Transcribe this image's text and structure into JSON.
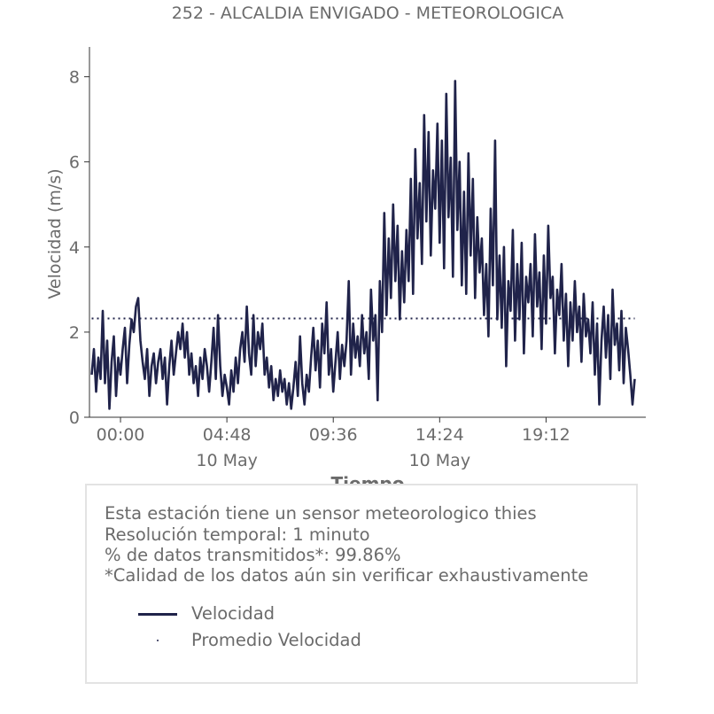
{
  "chart_data": {
    "type": "line",
    "title": "252 - ALCALDIA ENVIGADO - METEOROLOGICA",
    "xlabel": "Tiempo",
    "ylabel": "Velocidad (m/s)",
    "ylim": [
      0,
      8.7
    ],
    "xlim": [
      -1.4,
      23.7
    ],
    "yticks": [
      0,
      2,
      4,
      6,
      8
    ],
    "xticks": [
      {
        "h": 0.0,
        "label": "00:00",
        "sublabel": ""
      },
      {
        "h": 4.8,
        "label": "04:48",
        "sublabel": "10 May"
      },
      {
        "h": 9.6,
        "label": "09:36",
        "sublabel": ""
      },
      {
        "h": 14.4,
        "label": "14:24",
        "sublabel": "10 May"
      },
      {
        "h": 19.2,
        "label": "19:12",
        "sublabel": ""
      }
    ],
    "x_unit": "hours after 00:00 on 10 May",
    "grid": false,
    "series": [
      {
        "name": "Velocidad",
        "style": "line",
        "color": "#20234a",
        "points": [
          [
            -1.3,
            1.0
          ],
          [
            -1.2,
            1.6
          ],
          [
            -1.1,
            0.6
          ],
          [
            -1.0,
            1.4
          ],
          [
            -0.9,
            0.9
          ],
          [
            -0.8,
            2.5
          ],
          [
            -0.7,
            0.8
          ],
          [
            -0.6,
            1.8
          ],
          [
            -0.5,
            0.2
          ],
          [
            -0.4,
            1.3
          ],
          [
            -0.3,
            1.9
          ],
          [
            -0.2,
            0.5
          ],
          [
            -0.1,
            1.4
          ],
          [
            0.0,
            1.0
          ],
          [
            0.1,
            1.6
          ],
          [
            0.2,
            2.1
          ],
          [
            0.3,
            0.8
          ],
          [
            0.4,
            1.7
          ],
          [
            0.5,
            2.3
          ],
          [
            0.6,
            2.0
          ],
          [
            0.7,
            2.6
          ],
          [
            0.8,
            2.8
          ],
          [
            0.9,
            1.8
          ],
          [
            1.0,
            1.3
          ],
          [
            1.1,
            0.9
          ],
          [
            1.2,
            1.6
          ],
          [
            1.3,
            0.5
          ],
          [
            1.4,
            1.2
          ],
          [
            1.5,
            1.5
          ],
          [
            1.6,
            0.8
          ],
          [
            1.7,
            1.3
          ],
          [
            1.8,
            1.6
          ],
          [
            1.9,
            0.9
          ],
          [
            2.0,
            1.4
          ],
          [
            2.1,
            0.3
          ],
          [
            2.2,
            1.2
          ],
          [
            2.3,
            1.8
          ],
          [
            2.4,
            1.0
          ],
          [
            2.5,
            1.5
          ],
          [
            2.6,
            2.0
          ],
          [
            2.7,
            1.6
          ],
          [
            2.8,
            2.2
          ],
          [
            2.9,
            1.4
          ],
          [
            3.0,
            2.0
          ],
          [
            3.1,
            1.0
          ],
          [
            3.2,
            1.5
          ],
          [
            3.3,
            0.8
          ],
          [
            3.4,
            1.2
          ],
          [
            3.5,
            0.5
          ],
          [
            3.6,
            1.4
          ],
          [
            3.7,
            0.9
          ],
          [
            3.8,
            1.6
          ],
          [
            3.9,
            1.2
          ],
          [
            4.0,
            0.6
          ],
          [
            4.1,
            1.3
          ],
          [
            4.2,
            2.1
          ],
          [
            4.3,
            0.9
          ],
          [
            4.4,
            2.4
          ],
          [
            4.5,
            1.2
          ],
          [
            4.6,
            0.5
          ],
          [
            4.7,
            1.0
          ],
          [
            4.8,
            0.7
          ],
          [
            4.9,
            0.3
          ],
          [
            5.0,
            1.1
          ],
          [
            5.1,
            0.6
          ],
          [
            5.2,
            1.4
          ],
          [
            5.3,
            0.8
          ],
          [
            5.4,
            1.6
          ],
          [
            5.5,
            2.0
          ],
          [
            5.6,
            1.3
          ],
          [
            5.7,
            2.6
          ],
          [
            5.8,
            1.5
          ],
          [
            5.9,
            1.0
          ],
          [
            6.0,
            2.4
          ],
          [
            6.1,
            1.2
          ],
          [
            6.2,
            2.0
          ],
          [
            6.3,
            1.6
          ],
          [
            6.4,
            2.2
          ],
          [
            6.5,
            1.0
          ],
          [
            6.6,
            1.4
          ],
          [
            6.7,
            0.7
          ],
          [
            6.8,
            1.2
          ],
          [
            6.9,
            0.4
          ],
          [
            7.0,
            0.9
          ],
          [
            7.1,
            0.5
          ],
          [
            7.2,
            1.1
          ],
          [
            7.3,
            0.6
          ],
          [
            7.4,
            0.9
          ],
          [
            7.5,
            0.3
          ],
          [
            7.6,
            0.8
          ],
          [
            7.7,
            0.2
          ],
          [
            7.8,
            0.7
          ],
          [
            7.9,
            1.3
          ],
          [
            8.0,
            0.5
          ],
          [
            8.1,
            1.9
          ],
          [
            8.2,
            0.8
          ],
          [
            8.3,
            0.3
          ],
          [
            8.4,
            1.0
          ],
          [
            8.5,
            0.6
          ],
          [
            8.6,
            1.4
          ],
          [
            8.7,
            2.1
          ],
          [
            8.8,
            1.1
          ],
          [
            8.9,
            1.8
          ],
          [
            9.0,
            0.7
          ],
          [
            9.1,
            2.2
          ],
          [
            9.2,
            1.5
          ],
          [
            9.3,
            2.7
          ],
          [
            9.4,
            1.0
          ],
          [
            9.5,
            1.6
          ],
          [
            9.6,
            0.6
          ],
          [
            9.7,
            1.3
          ],
          [
            9.8,
            2.0
          ],
          [
            9.9,
            0.9
          ],
          [
            10.0,
            1.7
          ],
          [
            10.1,
            1.2
          ],
          [
            10.2,
            1.8
          ],
          [
            10.3,
            3.2
          ],
          [
            10.4,
            1.0
          ],
          [
            10.5,
            2.2
          ],
          [
            10.6,
            1.4
          ],
          [
            10.7,
            1.9
          ],
          [
            10.8,
            1.2
          ],
          [
            10.9,
            2.4
          ],
          [
            11.0,
            1.5
          ],
          [
            11.1,
            2.0
          ],
          [
            11.2,
            0.9
          ],
          [
            11.3,
            3.0
          ],
          [
            11.4,
            1.8
          ],
          [
            11.5,
            2.4
          ],
          [
            11.6,
            0.4
          ],
          [
            11.7,
            3.2
          ],
          [
            11.8,
            2.0
          ],
          [
            11.9,
            4.8
          ],
          [
            12.0,
            2.4
          ],
          [
            12.1,
            4.2
          ],
          [
            12.2,
            2.8
          ],
          [
            12.3,
            5.0
          ],
          [
            12.4,
            3.2
          ],
          [
            12.5,
            4.5
          ],
          [
            12.6,
            2.3
          ],
          [
            12.7,
            3.9
          ],
          [
            12.8,
            2.7
          ],
          [
            12.9,
            4.4
          ],
          [
            13.0,
            3.2
          ],
          [
            13.1,
            5.6
          ],
          [
            13.2,
            2.9
          ],
          [
            13.3,
            6.3
          ],
          [
            13.4,
            4.2
          ],
          [
            13.5,
            5.5
          ],
          [
            13.6,
            3.6
          ],
          [
            13.7,
            7.1
          ],
          [
            13.8,
            4.6
          ],
          [
            13.9,
            6.7
          ],
          [
            14.0,
            3.8
          ],
          [
            14.1,
            5.8
          ],
          [
            14.2,
            4.9
          ],
          [
            14.3,
            6.9
          ],
          [
            14.4,
            4.1
          ],
          [
            14.5,
            6.5
          ],
          [
            14.6,
            3.5
          ],
          [
            14.7,
            7.6
          ],
          [
            14.8,
            4.7
          ],
          [
            14.9,
            6.1
          ],
          [
            15.0,
            3.3
          ],
          [
            15.1,
            7.9
          ],
          [
            15.2,
            4.4
          ],
          [
            15.3,
            6.0
          ],
          [
            15.4,
            3.1
          ],
          [
            15.5,
            5.3
          ],
          [
            15.6,
            2.9
          ],
          [
            15.7,
            6.2
          ],
          [
            15.8,
            3.8
          ],
          [
            15.9,
            5.6
          ],
          [
            16.0,
            2.8
          ],
          [
            16.1,
            4.7
          ],
          [
            16.2,
            3.4
          ],
          [
            16.3,
            4.2
          ],
          [
            16.4,
            2.4
          ],
          [
            16.5,
            3.6
          ],
          [
            16.6,
            1.9
          ],
          [
            16.7,
            4.9
          ],
          [
            16.8,
            3.1
          ],
          [
            16.9,
            6.5
          ],
          [
            17.0,
            2.3
          ],
          [
            17.1,
            3.8
          ],
          [
            17.2,
            2.1
          ],
          [
            17.3,
            4.0
          ],
          [
            17.4,
            1.2
          ],
          [
            17.5,
            3.2
          ],
          [
            17.6,
            2.5
          ],
          [
            17.7,
            4.4
          ],
          [
            17.8,
            1.8
          ],
          [
            17.9,
            3.6
          ],
          [
            18.0,
            2.3
          ],
          [
            18.1,
            4.1
          ],
          [
            18.2,
            1.5
          ],
          [
            18.3,
            3.3
          ],
          [
            18.4,
            2.7
          ],
          [
            18.5,
            3.6
          ],
          [
            18.6,
            1.9
          ],
          [
            18.7,
            4.3
          ],
          [
            18.8,
            2.6
          ],
          [
            18.9,
            3.4
          ],
          [
            19.0,
            1.6
          ],
          [
            19.1,
            3.8
          ],
          [
            19.2,
            2.2
          ],
          [
            19.3,
            4.5
          ],
          [
            19.4,
            2.8
          ],
          [
            19.5,
            3.3
          ],
          [
            19.6,
            1.5
          ],
          [
            19.7,
            3.0
          ],
          [
            19.8,
            2.4
          ],
          [
            19.9,
            3.6
          ],
          [
            20.0,
            1.8
          ],
          [
            20.1,
            2.9
          ],
          [
            20.2,
            1.2
          ],
          [
            20.3,
            2.7
          ],
          [
            20.4,
            1.8
          ],
          [
            20.5,
            3.2
          ],
          [
            20.6,
            2.0
          ],
          [
            20.7,
            2.6
          ],
          [
            20.8,
            1.3
          ],
          [
            20.9,
            2.9
          ],
          [
            21.0,
            1.9
          ],
          [
            21.1,
            2.3
          ],
          [
            21.2,
            1.5
          ],
          [
            21.3,
            2.7
          ],
          [
            21.4,
            1.0
          ],
          [
            21.5,
            2.2
          ],
          [
            21.6,
            0.3
          ],
          [
            21.7,
            1.8
          ],
          [
            21.8,
            2.6
          ],
          [
            21.9,
            1.4
          ],
          [
            22.0,
            2.4
          ],
          [
            22.1,
            0.9
          ],
          [
            22.2,
            3.0
          ],
          [
            22.3,
            1.7
          ],
          [
            22.4,
            2.2
          ],
          [
            22.5,
            1.1
          ],
          [
            22.6,
            2.5
          ],
          [
            22.7,
            0.8
          ],
          [
            22.8,
            2.1
          ],
          [
            22.9,
            1.6
          ],
          [
            23.0,
            1.0
          ],
          [
            23.1,
            0.3
          ],
          [
            23.2,
            0.9
          ]
        ]
      },
      {
        "name": "Promedio Velocidad",
        "style": "dotted",
        "color": "#20234a",
        "points": [
          [
            -1.3,
            2.32
          ],
          [
            23.2,
            2.32
          ]
        ]
      }
    ]
  },
  "info": {
    "line1": "Esta estación tiene un sensor meteorologico thies",
    "line2": "Resolución temporal: 1 minuto",
    "line3": "% de datos transmitidos*: 99.86%",
    "line4": "*Calidad de los datos aún sin verificar exhaustivamente"
  },
  "legend": {
    "item1": "Velocidad",
    "item2": "Promedio Velocidad"
  },
  "colors": {
    "series": "#20234a",
    "text": "#6b6b6b",
    "axis": "#333333"
  }
}
